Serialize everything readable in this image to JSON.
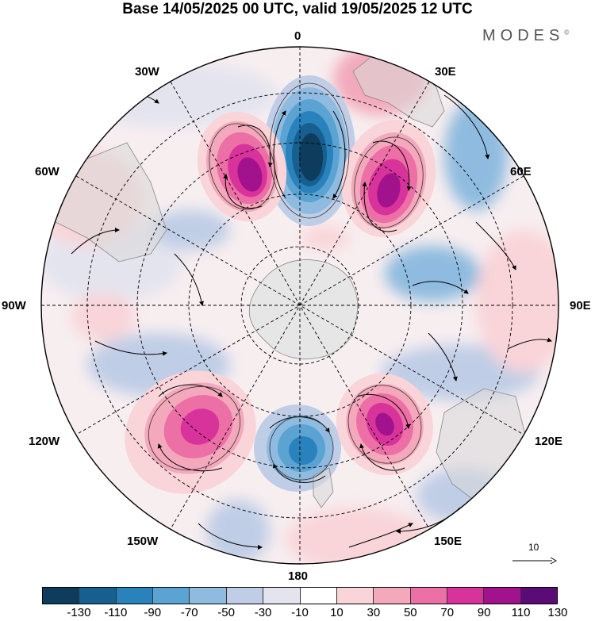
{
  "title": "Base 14/05/2025 00 UTC, valid 19/05/2025 12 UTC",
  "brand": "MODES",
  "brand_mark": "©",
  "longitude_labels": {
    "lon_0": "0",
    "lon_30e": "30E",
    "lon_60e": "60E",
    "lon_90e": "90E",
    "lon_120e": "120E",
    "lon_150e": "150E",
    "lon_180": "180",
    "lon_150w": "150W",
    "lon_120w": "120W",
    "lon_90w": "90W",
    "lon_60w": "60W",
    "lon_30w": "30W"
  },
  "reference_vector": "10",
  "colorbar": {
    "colors": [
      "#0d3c5c",
      "#175f8f",
      "#2a82bd",
      "#5aa3d2",
      "#8ebbdf",
      "#bfcde6",
      "#e4e4ef",
      "#ffffff",
      "#f9d4d8",
      "#f3a9bb",
      "#ec6fa6",
      "#d8339a",
      "#a1128c",
      "#5a0b76"
    ],
    "tick_labels": [
      "-130",
      "-110",
      "-90",
      "-70",
      "-50",
      "-30",
      "-10",
      "10",
      "30",
      "50",
      "70",
      "90",
      "110",
      "130"
    ]
  }
}
